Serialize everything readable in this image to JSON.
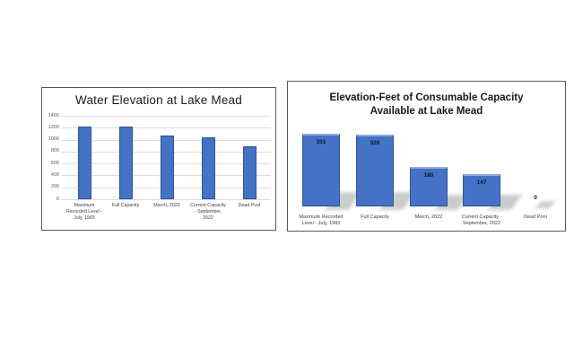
{
  "page": {
    "background": "#ffffff"
  },
  "chart_data": [
    {
      "type": "bar",
      "title": "Water Elevation at Lake Mead",
      "categories": [
        "Maximum Recorded Level - July, 1983",
        "Full Capacity",
        "March, 2022",
        "Current Capacity - September, 2022",
        "Dead Pool"
      ],
      "category_lines": [
        [
          "Maximum",
          "Recorded Level -",
          "July, 1983"
        ],
        [
          "Full Capacity"
        ],
        [
          "March, 2022"
        ],
        [
          "Current Capacity",
          "- September,",
          "2022"
        ],
        [
          "Dead Pool"
        ]
      ],
      "values": [
        1226,
        1221,
        1075,
        1042,
        895
      ],
      "xlabel": "",
      "ylabel": "",
      "ylim": [
        0,
        1400
      ],
      "yticks": [
        0,
        200,
        400,
        600,
        800,
        1000,
        1200,
        1400
      ],
      "grid": true,
      "legend": false,
      "data_labels": null,
      "bar_fill": "#4472C4",
      "bar_border": "#2E5597",
      "gridline_color": "#DCDCDC"
    },
    {
      "type": "bar",
      "title": "Elevation-Feet of Consumable Capacity Available at Lake Mead",
      "title_lines": [
        "Elevation-Feet of Consumable Capacity",
        "Available at Lake Mead"
      ],
      "categories": [
        "Maximum Recorded Level - July, 1983",
        "Full Capacity",
        "March, 2022",
        "Current Capacity - September, 2022",
        "Dead Pool"
      ],
      "category_lines": [
        [
          "Maximum Recorded",
          "Level - July, 1983"
        ],
        [
          "Full Capacity"
        ],
        [
          "March, 2022"
        ],
        [
          "Current Capacity -",
          "September, 2022"
        ],
        [
          "Dead Pool"
        ]
      ],
      "values": [
        331,
        326,
        180,
        147,
        0
      ],
      "data_labels": [
        "331",
        "326",
        "180",
        "147",
        "0"
      ],
      "xlabel": "",
      "ylabel": "",
      "ylim": [
        0,
        350
      ],
      "grid": false,
      "legend": false,
      "shadow": true,
      "bar_fill": "#4472C4",
      "bar_border": "#2E5597"
    }
  ]
}
